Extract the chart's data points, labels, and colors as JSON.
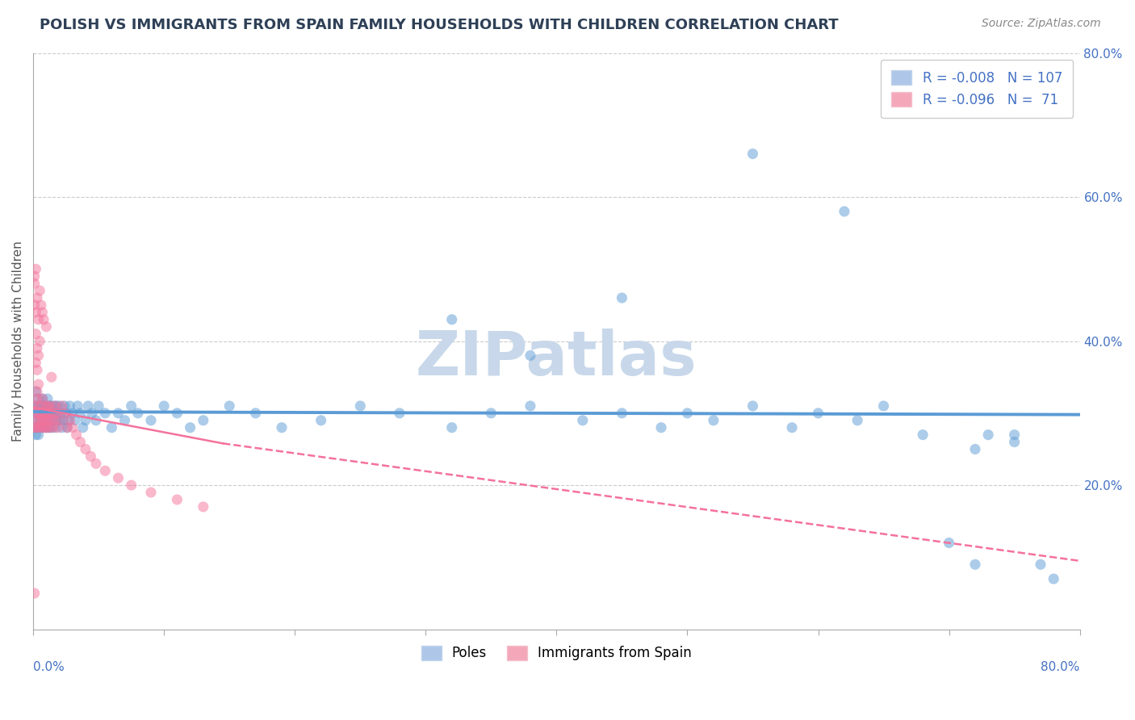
{
  "title": "POLISH VS IMMIGRANTS FROM SPAIN FAMILY HOUSEHOLDS WITH CHILDREN CORRELATION CHART",
  "source_text": "Source: ZipAtlas.com",
  "ylabel": "Family Households with Children",
  "watermark": "ZIPatlas",
  "xlim": [
    0.0,
    0.8
  ],
  "ylim": [
    0.0,
    0.8
  ],
  "right_ytick_labels": [
    "80.0%",
    "60.0%",
    "40.0%",
    "20.0%"
  ],
  "right_ytick_positions": [
    0.8,
    0.6,
    0.4,
    0.2
  ],
  "poles_R": -0.008,
  "poles_N": 107,
  "spain_R": -0.096,
  "spain_N": 71,
  "blue_color": "#5b9bd5",
  "pink_color": "#f4729b",
  "blue_light": "#aec6e8",
  "pink_light": "#f4a7b9",
  "grid_color": "#cccccc",
  "title_color": "#2e4057",
  "right_label_color": "#4472c4",
  "bottom_label_color": "#4472c4",
  "watermark_color": "#c8d8ea",
  "blue_line_y_start": 0.302,
  "blue_line_y_end": 0.298,
  "pink_line_x_solid_start": 0.0,
  "pink_line_x_solid_end": 0.145,
  "pink_line_y_solid_start": 0.308,
  "pink_line_y_solid_end": 0.258,
  "pink_line_x_dash_start": 0.145,
  "pink_line_x_dash_end": 0.8,
  "pink_line_y_dash_start": 0.258,
  "pink_line_y_dash_end": 0.095,
  "poles_x": [
    0.001,
    0.001,
    0.002,
    0.002,
    0.002,
    0.003,
    0.003,
    0.003,
    0.004,
    0.004,
    0.004,
    0.005,
    0.005,
    0.005,
    0.006,
    0.006,
    0.007,
    0.007,
    0.007,
    0.008,
    0.008,
    0.008,
    0.009,
    0.009,
    0.01,
    0.01,
    0.01,
    0.011,
    0.011,
    0.012,
    0.012,
    0.013,
    0.013,
    0.014,
    0.014,
    0.015,
    0.015,
    0.016,
    0.017,
    0.017,
    0.018,
    0.018,
    0.019,
    0.02,
    0.02,
    0.021,
    0.022,
    0.023,
    0.024,
    0.025,
    0.026,
    0.027,
    0.028,
    0.03,
    0.032,
    0.034,
    0.036,
    0.038,
    0.04,
    0.042,
    0.045,
    0.048,
    0.05,
    0.055,
    0.06,
    0.065,
    0.07,
    0.075,
    0.08,
    0.09,
    0.1,
    0.11,
    0.12,
    0.13,
    0.15,
    0.17,
    0.19,
    0.22,
    0.25,
    0.28,
    0.32,
    0.35,
    0.38,
    0.42,
    0.45,
    0.48,
    0.5,
    0.52,
    0.55,
    0.58,
    0.6,
    0.63,
    0.65,
    0.68,
    0.7,
    0.72,
    0.73,
    0.75,
    0.77,
    0.78,
    0.55,
    0.62,
    0.38,
    0.32,
    0.45,
    0.72,
    0.75
  ],
  "poles_y": [
    0.31,
    0.28,
    0.3,
    0.27,
    0.33,
    0.29,
    0.31,
    0.28,
    0.3,
    0.32,
    0.27,
    0.29,
    0.31,
    0.28,
    0.3,
    0.28,
    0.32,
    0.29,
    0.31,
    0.3,
    0.28,
    0.31,
    0.29,
    0.3,
    0.31,
    0.28,
    0.3,
    0.29,
    0.32,
    0.31,
    0.28,
    0.3,
    0.29,
    0.31,
    0.28,
    0.3,
    0.29,
    0.31,
    0.3,
    0.28,
    0.29,
    0.31,
    0.3,
    0.29,
    0.31,
    0.3,
    0.28,
    0.29,
    0.31,
    0.3,
    0.28,
    0.29,
    0.31,
    0.3,
    0.29,
    0.31,
    0.3,
    0.28,
    0.29,
    0.31,
    0.3,
    0.29,
    0.31,
    0.3,
    0.28,
    0.3,
    0.29,
    0.31,
    0.3,
    0.29,
    0.31,
    0.3,
    0.28,
    0.29,
    0.31,
    0.3,
    0.28,
    0.29,
    0.31,
    0.3,
    0.28,
    0.3,
    0.31,
    0.29,
    0.3,
    0.28,
    0.3,
    0.29,
    0.31,
    0.28,
    0.3,
    0.29,
    0.31,
    0.27,
    0.12,
    0.09,
    0.27,
    0.26,
    0.09,
    0.07,
    0.66,
    0.58,
    0.38,
    0.43,
    0.46,
    0.25,
    0.27
  ],
  "spain_x": [
    0.001,
    0.001,
    0.001,
    0.002,
    0.002,
    0.002,
    0.003,
    0.003,
    0.003,
    0.004,
    0.004,
    0.004,
    0.005,
    0.005,
    0.005,
    0.006,
    0.006,
    0.006,
    0.007,
    0.007,
    0.007,
    0.008,
    0.008,
    0.008,
    0.009,
    0.009,
    0.01,
    0.01,
    0.01,
    0.011,
    0.011,
    0.012,
    0.012,
    0.013,
    0.013,
    0.014,
    0.015,
    0.015,
    0.016,
    0.017,
    0.018,
    0.019,
    0.02,
    0.022,
    0.024,
    0.026,
    0.028,
    0.03,
    0.033,
    0.036,
    0.04,
    0.044,
    0.048,
    0.055,
    0.065,
    0.075,
    0.09,
    0.11,
    0.13,
    0.001,
    0.002,
    0.003,
    0.002,
    0.003,
    0.004,
    0.001,
    0.001,
    0.002,
    0.003,
    0.004,
    0.005
  ],
  "spain_y": [
    0.31,
    0.28,
    0.45,
    0.3,
    0.28,
    0.44,
    0.32,
    0.29,
    0.46,
    0.3,
    0.43,
    0.28,
    0.31,
    0.47,
    0.29,
    0.3,
    0.45,
    0.28,
    0.32,
    0.44,
    0.29,
    0.3,
    0.43,
    0.28,
    0.31,
    0.29,
    0.3,
    0.42,
    0.28,
    0.31,
    0.29,
    0.3,
    0.28,
    0.31,
    0.29,
    0.35,
    0.3,
    0.28,
    0.29,
    0.31,
    0.3,
    0.28,
    0.29,
    0.31,
    0.3,
    0.28,
    0.29,
    0.28,
    0.27,
    0.26,
    0.25,
    0.24,
    0.23,
    0.22,
    0.21,
    0.2,
    0.19,
    0.18,
    0.17,
    0.49,
    0.41,
    0.39,
    0.37,
    0.36,
    0.34,
    0.05,
    0.48,
    0.5,
    0.33,
    0.38,
    0.4
  ]
}
